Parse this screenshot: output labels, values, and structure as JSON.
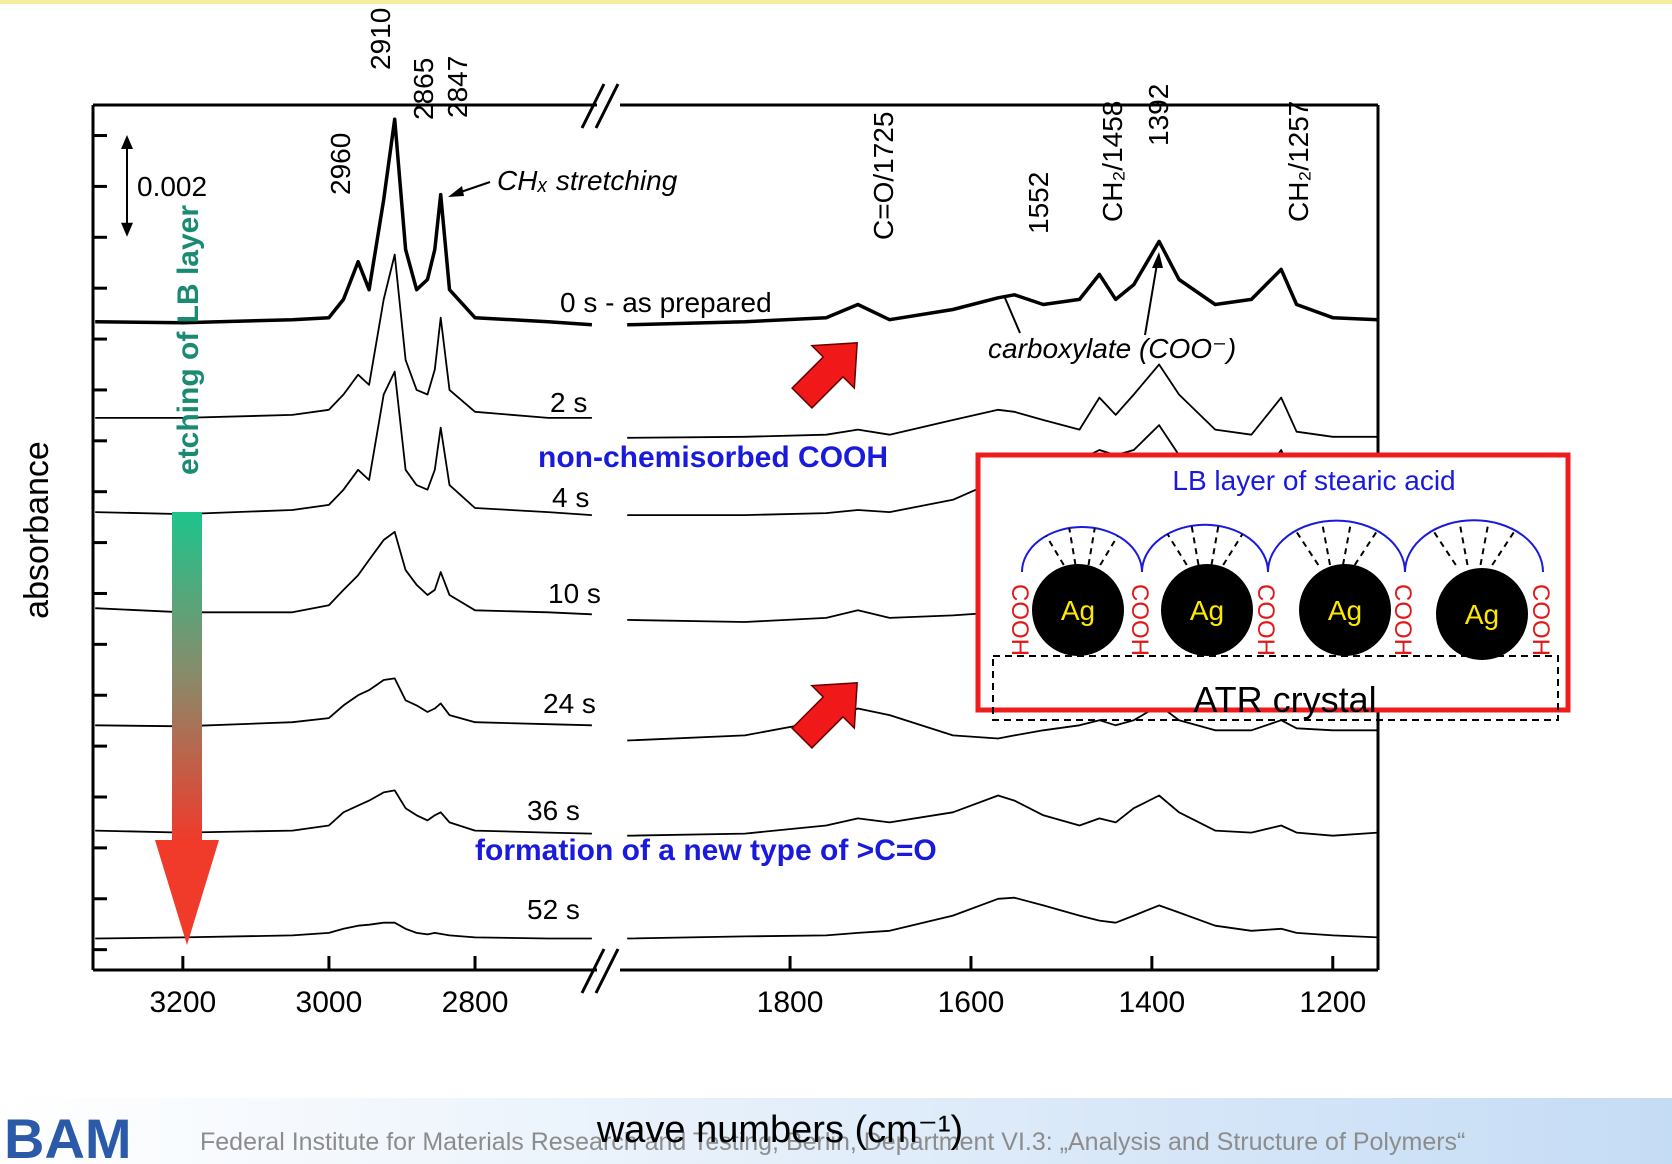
{
  "chart_data": {
    "type": "line",
    "x_label": "wave numbers (cm⁻¹)",
    "y_label": "absorbance",
    "xlim": [
      3323,
      1150
    ],
    "x_break": [
      2633,
      1988
    ],
    "xticks": [
      3200,
      3000,
      2800,
      1800,
      1600,
      1400,
      1200
    ],
    "ylim": [
      -0.0004,
      0.0166
    ],
    "yticks": [
      0,
      0.001,
      0.002,
      0.003,
      0.004,
      0.005,
      0.006,
      0.007,
      0.008,
      0.009,
      0.01,
      0.011,
      0.012,
      0.013,
      0.014,
      0.015,
      0.016
    ],
    "scale_bar": 0.002,
    "x": [
      3320,
      3200,
      3050,
      3000,
      2980,
      2960,
      2945,
      2925,
      2910,
      2895,
      2880,
      2865,
      2855,
      2847,
      2835,
      2800,
      2700,
      2640,
      2300,
      1980,
      1850,
      1760,
      1725,
      1690,
      1620,
      1570,
      1552,
      1520,
      1480,
      1458,
      1440,
      1420,
      1392,
      1370,
      1330,
      1290,
      1257,
      1240,
      1200,
      1150
    ],
    "series": [
      {
        "name": "0 s - as prepared",
        "color": "#000000",
        "width": 3.5,
        "values": [
          0.01234,
          0.01232,
          0.01238,
          0.01242,
          0.01278,
          0.01352,
          0.01297,
          0.01474,
          0.01632,
          0.01376,
          0.01297,
          0.01317,
          0.01376,
          0.01484,
          0.01297,
          0.01242,
          0.01234,
          0.01228,
          null,
          0.01228,
          0.01234,
          0.01242,
          0.01268,
          0.01238,
          0.01258,
          0.01281,
          0.01287,
          0.01268,
          0.01278,
          0.01327,
          0.01278,
          0.01307,
          0.01392,
          0.01317,
          0.01268,
          0.01278,
          0.01337,
          0.01268,
          0.01242,
          0.01238
        ]
      },
      {
        "name": "2 s",
        "color": "#000000",
        "width": 1.8,
        "values": [
          0.01045,
          0.01045,
          0.01051,
          0.01061,
          0.01091,
          0.0113,
          0.0111,
          0.01278,
          0.01366,
          0.01159,
          0.011,
          0.01091,
          0.0114,
          0.01242,
          0.011,
          0.01057,
          0.01045,
          0.01045,
          null,
          0.01006,
          0.01008,
          0.01012,
          0.01022,
          0.01012,
          0.01041,
          0.01061,
          0.01057,
          0.01041,
          0.01022,
          0.01085,
          0.01051,
          0.01091,
          0.0115,
          0.01091,
          0.01022,
          0.01012,
          0.01085,
          0.01018,
          0.01008,
          0.01008
        ]
      },
      {
        "name": "4 s",
        "color": "#000000",
        "width": 1.8,
        "values": [
          0.0086,
          0.00856,
          0.00864,
          0.00874,
          0.00904,
          0.00943,
          0.00923,
          0.01091,
          0.01136,
          0.00943,
          0.00913,
          0.00904,
          0.00943,
          0.01026,
          0.00913,
          0.00868,
          0.0086,
          0.00854,
          null,
          0.00854,
          0.00854,
          0.00858,
          0.00864,
          0.0086,
          0.00884,
          0.00923,
          0.00933,
          0.00943,
          0.00963,
          0.00982,
          0.00972,
          0.00982,
          0.01031,
          0.00972,
          0.00923,
          0.00904,
          0.00982,
          0.00904,
          0.00884,
          0.00884
        ]
      },
      {
        "name": "10 s",
        "color": "#000000",
        "width": 1.8,
        "values": [
          0.00671,
          0.00663,
          0.00663,
          0.00677,
          0.00707,
          0.00736,
          0.00766,
          0.00805,
          0.00821,
          0.00746,
          0.00717,
          0.00697,
          0.00707,
          0.00742,
          0.00697,
          0.00667,
          0.00663,
          0.00659,
          null,
          0.00648,
          0.00644,
          0.00652,
          0.00667,
          0.00652,
          0.00657,
          0.00663,
          0.00667,
          0.00657,
          0.00663,
          0.00677,
          0.00667,
          0.00677,
          0.00707,
          0.00677,
          0.00657,
          0.00652,
          0.00677,
          0.00657,
          0.00648,
          0.00648
        ]
      },
      {
        "name": "24 s",
        "color": "#000000",
        "width": 1.8,
        "values": [
          0.00441,
          0.00439,
          0.00447,
          0.00455,
          0.0048,
          0.005,
          0.0051,
          0.0053,
          0.00533,
          0.0049,
          0.0048,
          0.00467,
          0.00474,
          0.00484,
          0.00461,
          0.00447,
          0.00443,
          0.00441,
          null,
          0.00411,
          0.00421,
          0.00451,
          0.00474,
          0.00461,
          0.00421,
          0.00415,
          0.00421,
          0.00431,
          0.00441,
          0.00451,
          0.00441,
          0.00451,
          0.0048,
          0.00451,
          0.00431,
          0.00431,
          0.00451,
          0.00435,
          0.00431,
          0.00431
        ]
      },
      {
        "name": "36 s",
        "color": "#000000",
        "width": 1.8,
        "values": [
          0.00234,
          0.0023,
          0.00234,
          0.00244,
          0.0027,
          0.00283,
          0.00293,
          0.00309,
          0.00313,
          0.00278,
          0.00264,
          0.00254,
          0.00264,
          0.0027,
          0.0025,
          0.00234,
          0.0023,
          0.00228,
          null,
          0.00224,
          0.00228,
          0.00244,
          0.00258,
          0.0025,
          0.0027,
          0.00303,
          0.00293,
          0.00264,
          0.00244,
          0.00258,
          0.0025,
          0.00278,
          0.00303,
          0.0027,
          0.00234,
          0.0023,
          0.00244,
          0.0023,
          0.00224,
          0.0023
        ]
      },
      {
        "name": "52 s",
        "color": "#000000",
        "width": 1.8,
        "values": [
          0.00022,
          0.00024,
          0.00028,
          0.00033,
          0.00041,
          0.00047,
          0.00049,
          0.00053,
          0.00053,
          0.00041,
          0.00033,
          0.0003,
          0.00033,
          0.00031,
          0.00028,
          0.00024,
          0.00022,
          0.00022,
          null,
          0.00022,
          0.00026,
          0.00028,
          0.00033,
          0.00037,
          0.00067,
          0.001,
          0.00102,
          0.00087,
          0.00067,
          0.00057,
          0.00053,
          0.00067,
          0.00087,
          0.00073,
          0.00047,
          0.00037,
          0.00041,
          0.00033,
          0.00028,
          0.00024
        ]
      }
    ],
    "peak_labels": [
      "2960",
      "2910",
      "2865",
      "2847",
      "C=O/1725",
      "1552",
      "CH₂/1458",
      "1392",
      "CH₂/1257"
    ],
    "annotations": [
      "CHₓ stretching",
      "carboxylate (COO⁻)",
      "non-chemisorbed COOH",
      "formation of a new type of >C=O",
      "etching of LB layer"
    ]
  },
  "inset": {
    "title": "LB layer of stearic acid",
    "particles": [
      "Ag",
      "Ag",
      "Ag",
      "Ag"
    ],
    "groups": [
      "COOH",
      "COOH",
      "COOH",
      "COOH",
      "COOH"
    ],
    "crystal": "ATR crystal"
  },
  "footer": {
    "logo": "BAM",
    "text": "Federal Institute for Materials Research and Testing, Berlin, Department VI.3: „Analysis and Structure of Polymers“"
  }
}
